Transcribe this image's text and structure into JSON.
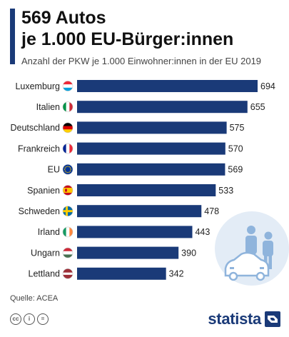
{
  "header": {
    "title_line1": "569 Autos",
    "title_line2": "je 1.000 EU-Bürger:innen",
    "subtitle": "Anzahl der PKW je 1.000 Einwohner:innen in der EU 2019"
  },
  "chart_data": {
    "type": "bar",
    "orientation": "horizontal",
    "categories": [
      "Luxemburg",
      "Italien",
      "Deutschland",
      "Frankreich",
      "EU",
      "Spanien",
      "Schweden",
      "Irland",
      "Ungarn",
      "Lettland"
    ],
    "values": [
      694,
      655,
      575,
      570,
      569,
      533,
      478,
      443,
      390,
      342
    ],
    "xlim": [
      0,
      694
    ],
    "grid": false,
    "bar_color": "#1a3a78"
  },
  "flags": [
    "flag-luxembourg-icon",
    "flag-italy-icon",
    "flag-germany-icon",
    "flag-france-icon",
    "flag-eu-icon",
    "flag-spain-icon",
    "flag-sweden-icon",
    "flag-ireland-icon",
    "flag-hungary-icon",
    "flag-latvia-icon"
  ],
  "footer": {
    "source": "Quelle: ACEA",
    "license_icons": [
      "cc-icon",
      "by-icon",
      "equals-icon"
    ],
    "logo_text": "statista"
  }
}
